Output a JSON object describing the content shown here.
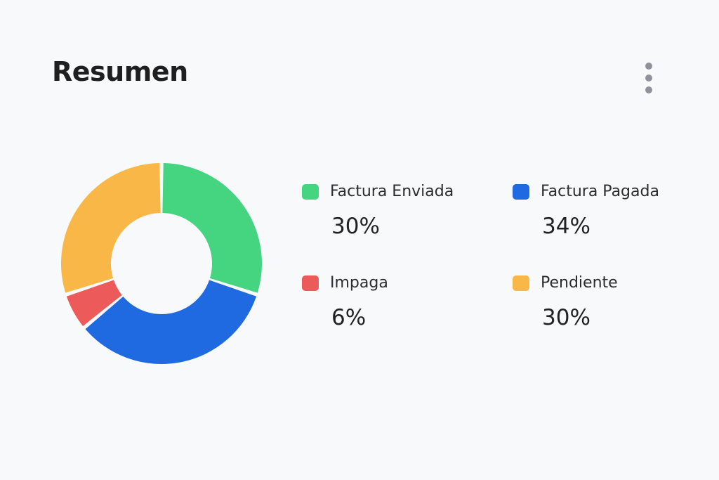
{
  "header": {
    "title": "Resumen",
    "menu_icon": "more-vertical-icon"
  },
  "chart_data": {
    "type": "pie",
    "categories": [
      "Factura Enviada",
      "Factura Pagada",
      "Impaga",
      "Pendiente"
    ],
    "values": [
      30,
      34,
      6,
      30
    ],
    "colors": [
      "#45d480",
      "#1f6ae0",
      "#ec5a5a",
      "#f8b746"
    ],
    "donut": true
  },
  "legend": {
    "items": [
      {
        "label": "Factura Enviada",
        "value": "30%",
        "color": "#45d480"
      },
      {
        "label": "Factura Pagada",
        "value": "34%",
        "color": "#1f6ae0"
      },
      {
        "label": "Impaga",
        "value": "6%",
        "color": "#ec5a5a"
      },
      {
        "label": "Pendiente",
        "value": "30%",
        "color": "#f8b746"
      }
    ]
  }
}
